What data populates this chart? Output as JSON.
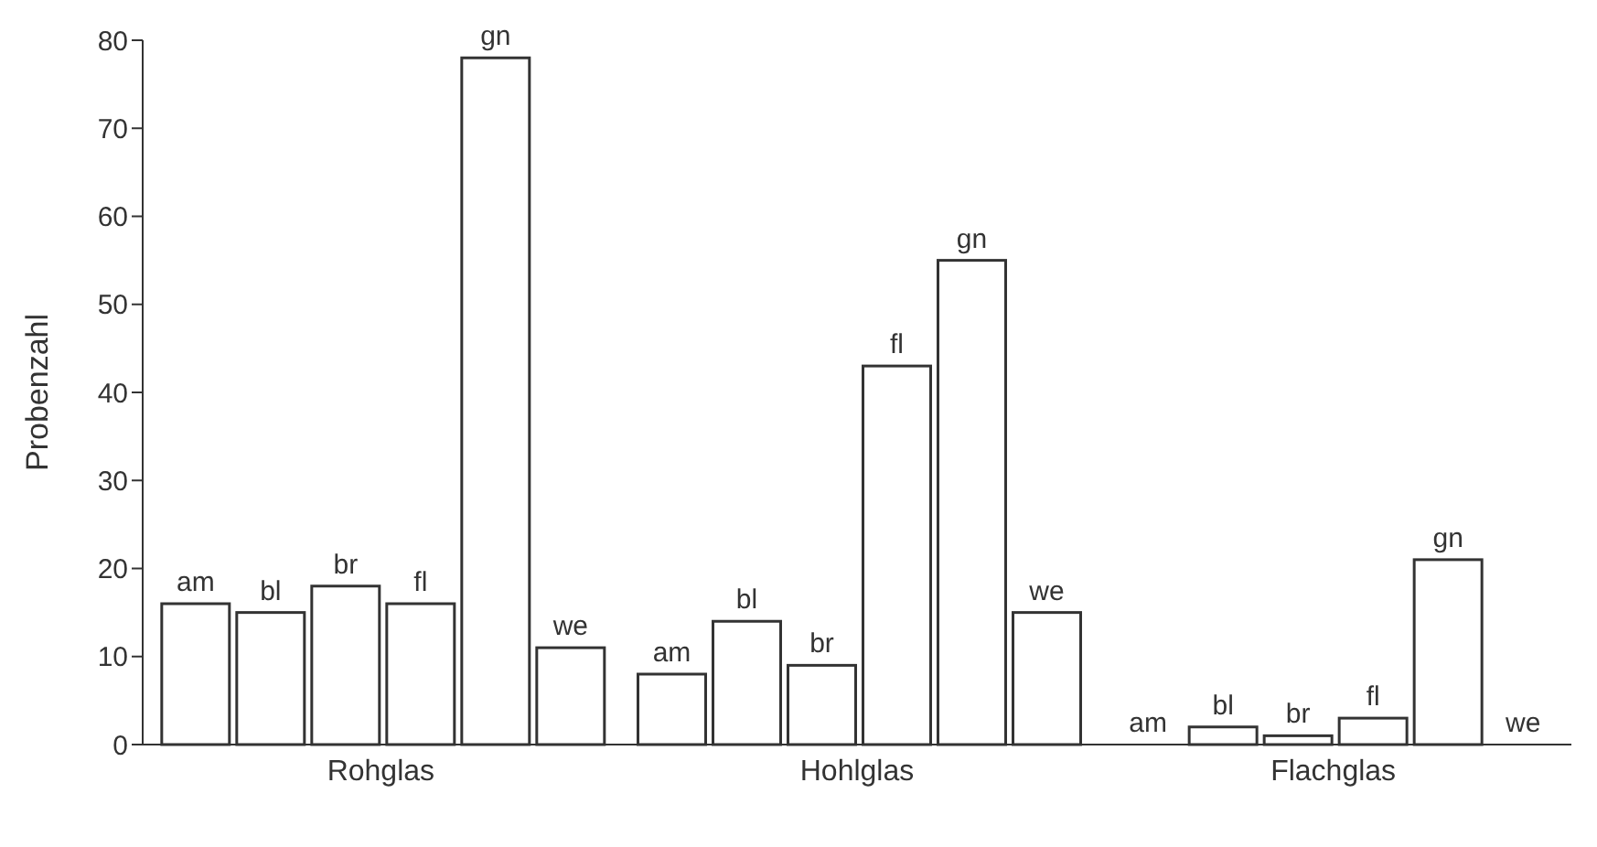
{
  "chart_data": {
    "type": "bar",
    "ylabel": "Probenzahl",
    "categories": [
      "Rohglas",
      "Hohlglas",
      "Flachglas"
    ],
    "series": [
      {
        "name": "am",
        "color": "#ffffff",
        "values": [
          16,
          8,
          0
        ]
      },
      {
        "name": "bl",
        "color": "#ffffff",
        "values": [
          15,
          14,
          2
        ]
      },
      {
        "name": "br",
        "color": "#ffffff",
        "values": [
          18,
          9,
          1
        ]
      },
      {
        "name": "fl",
        "color": "#ffffff",
        "values": [
          16,
          43,
          3
        ]
      },
      {
        "name": "gn",
        "color": "#ffffff",
        "values": [
          78,
          55,
          21
        ]
      },
      {
        "name": "we",
        "color": "#ffffff",
        "values": [
          11,
          15,
          0
        ]
      }
    ],
    "ylim": [
      0,
      80
    ],
    "yticks": [
      0,
      10,
      20,
      30,
      40,
      50,
      60,
      70,
      80
    ],
    "grid": false,
    "legend": false
  }
}
